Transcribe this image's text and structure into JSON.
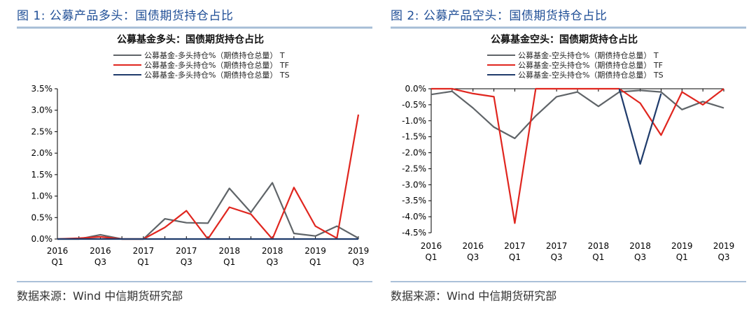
{
  "panels": [
    {
      "figure_label": "图 1:   公募产品多头：国债期货持仓占比",
      "source": "数据来源：Wind 中信期货研究部",
      "chart_data": {
        "type": "line",
        "title": "公募基金多头：国债期货持仓占比",
        "categories": [
          "2016Q1",
          "2016Q2",
          "2016Q3",
          "2016Q4",
          "2017Q1",
          "2017Q2",
          "2017Q3",
          "2017Q4",
          "2018Q1",
          "2018Q2",
          "2018Q3",
          "2018Q4",
          "2019Q1",
          "2019Q2",
          "2019Q3"
        ],
        "x_tick_labels": [
          [
            "2016",
            "Q1"
          ],
          [
            "2016",
            "Q3"
          ],
          [
            "2017",
            "Q1"
          ],
          [
            "2017",
            "Q3"
          ],
          [
            "2018",
            "Q1"
          ],
          [
            "2018",
            "Q3"
          ],
          [
            "2019",
            "Q1"
          ],
          [
            "2019",
            "Q3"
          ]
        ],
        "y_tick_labels": [
          "3.5%",
          "3.0%",
          "2.5%",
          "2.0%",
          "1.5%",
          "1.0%",
          "0.5%",
          "0.0%"
        ],
        "ylim": [
          0,
          3.5
        ],
        "legend_position": "top-center",
        "series": [
          {
            "name": "公募基金-多头持仓%（期债持仓总量） T",
            "color": "#5f6468",
            "values": [
              0.0,
              0.0,
              0.1,
              0.0,
              0.0,
              0.47,
              0.38,
              0.37,
              1.18,
              0.62,
              1.31,
              0.13,
              0.07,
              0.3,
              0.02
            ]
          },
          {
            "name": "公募基金-多头持仓%（期债持仓总量） TF",
            "color": "#e0261f",
            "values": [
              0.0,
              0.02,
              0.05,
              0.0,
              0.0,
              0.27,
              0.66,
              0.0,
              0.74,
              0.58,
              0.0,
              1.2,
              0.3,
              0.02,
              2.9
            ]
          },
          {
            "name": "公募基金-多头持仓%（期债持仓总量） TS",
            "color": "#1f3b6b",
            "values": [
              0.0,
              0.0,
              0.0,
              0.0,
              0.0,
              0.0,
              0.0,
              0.0,
              0.0,
              0.0,
              0.0,
              0.0,
              0.0,
              0.0,
              0.0
            ]
          }
        ]
      }
    },
    {
      "figure_label": "图 2:   公募产品空头：国债期货持仓占比",
      "source": "数据来源：Wind 中信期货研究部",
      "chart_data": {
        "type": "line",
        "title": "公募基金空头：国债期货持仓占比",
        "categories": [
          "2016Q1",
          "2016Q2",
          "2016Q3",
          "2016Q4",
          "2017Q1",
          "2017Q2",
          "2017Q3",
          "2017Q4",
          "2018Q1",
          "2018Q2",
          "2018Q3",
          "2018Q4",
          "2019Q1",
          "2019Q2",
          "2019Q3"
        ],
        "x_tick_labels": [
          [
            "2016",
            "Q1"
          ],
          [
            "2016",
            "Q3"
          ],
          [
            "2017",
            "Q1"
          ],
          [
            "2017",
            "Q3"
          ],
          [
            "2018",
            "Q1"
          ],
          [
            "2018",
            "Q3"
          ],
          [
            "2019",
            "Q1"
          ],
          [
            "2019",
            "Q3"
          ]
        ],
        "y_tick_labels": [
          "0.0%",
          "-0.5%",
          "-1.0%",
          "-1.5%",
          "-2.0%",
          "-2.5%",
          "-3.0%",
          "-3.5%",
          "-4.0%",
          "-4.5%"
        ],
        "ylim": [
          -4.5,
          0
        ],
        "legend_position": "top-center",
        "series": [
          {
            "name": "公募基金-空头持仓%（期债持仓总量） T",
            "color": "#5f6468",
            "values": [
              -0.18,
              -0.08,
              -0.6,
              -1.2,
              -1.55,
              -0.85,
              -0.25,
              -0.1,
              -0.55,
              -0.1,
              -0.05,
              -0.1,
              -0.65,
              -0.4,
              -0.6
            ]
          },
          {
            "name": "公募基金-空头持仓%（期债持仓总量） TF",
            "color": "#e0261f",
            "values": [
              0.0,
              0.0,
              -0.15,
              -0.25,
              -4.2,
              0.0,
              0.0,
              0.0,
              0.0,
              0.0,
              -0.45,
              -1.45,
              -0.1,
              -0.5,
              0.0
            ]
          },
          {
            "name": "公募基金-空头持仓%（期债持仓总量） TS",
            "color": "#1f3b6b",
            "values": [
              null,
              null,
              null,
              null,
              null,
              null,
              null,
              null,
              null,
              0.0,
              -2.35,
              -0.15,
              null,
              null,
              null
            ]
          }
        ]
      }
    }
  ]
}
